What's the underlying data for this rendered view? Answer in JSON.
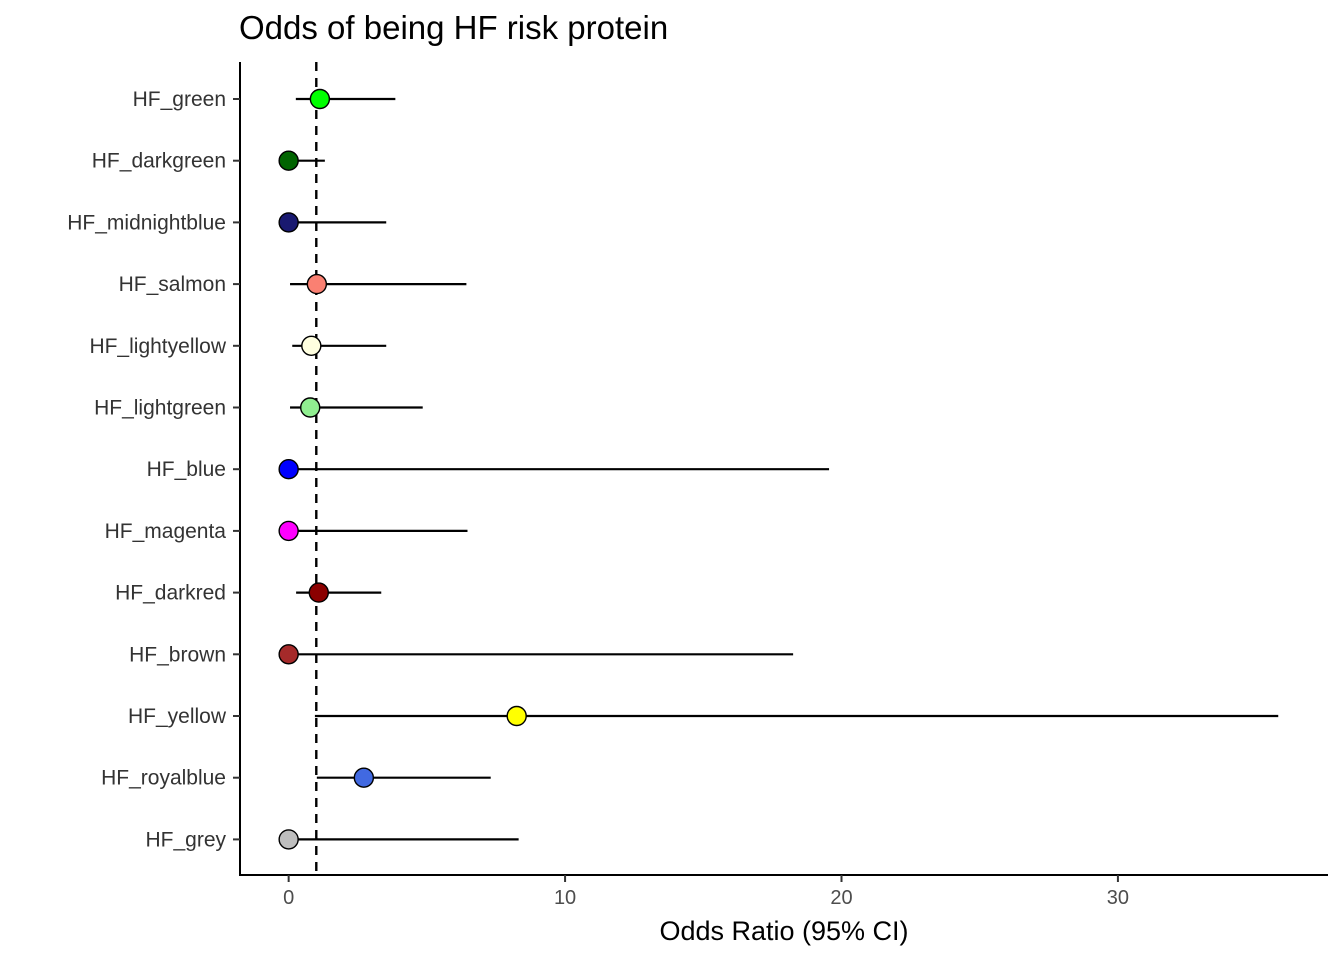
{
  "chart_data": {
    "type": "scatter",
    "subtype": "forest-plot",
    "title": "Odds of being HF risk protein",
    "xlabel": "Odds Ratio (95% CI)",
    "ylabel": "",
    "xlim": [
      -1.76,
      37.6
    ],
    "xticks": [
      0,
      10,
      20,
      30
    ],
    "reference_line": {
      "x": 1,
      "style": "dashed"
    },
    "grid": false,
    "legend": "none",
    "categories": [
      "HF_green",
      "HF_darkgreen",
      "HF_midnightblue",
      "HF_salmon",
      "HF_lightyellow",
      "HF_lightgreen",
      "HF_blue",
      "HF_magenta",
      "HF_darkred",
      "HF_brown",
      "HF_yellow",
      "HF_royalblue",
      "HF_grey"
    ],
    "points": [
      {
        "label": "HF_green",
        "or": 1.13,
        "lower": 0.26,
        "upper": 3.86,
        "color": "#00ff00"
      },
      {
        "label": "HF_darkgreen",
        "or": 0.0,
        "lower": 0.0,
        "upper": 1.31,
        "color": "#006400"
      },
      {
        "label": "HF_midnightblue",
        "or": 0.0,
        "lower": 0.0,
        "upper": 3.53,
        "color": "#191970"
      },
      {
        "label": "HF_salmon",
        "or": 1.02,
        "lower": 0.05,
        "upper": 6.43,
        "color": "#fa8072"
      },
      {
        "label": "HF_lightyellow",
        "or": 0.82,
        "lower": 0.13,
        "upper": 3.53,
        "color": "#ffffe0"
      },
      {
        "label": "HF_lightgreen",
        "or": 0.78,
        "lower": 0.05,
        "upper": 4.85,
        "color": "#90ee90"
      },
      {
        "label": "HF_blue",
        "or": 0.0,
        "lower": 0.0,
        "upper": 19.55,
        "color": "#0000ff"
      },
      {
        "label": "HF_magenta",
        "or": 0.0,
        "lower": 0.0,
        "upper": 6.47,
        "color": "#ff00ff"
      },
      {
        "label": "HF_darkred",
        "or": 1.09,
        "lower": 0.27,
        "upper": 3.35,
        "color": "#8b0000"
      },
      {
        "label": "HF_brown",
        "or": 0.0,
        "lower": 0.0,
        "upper": 18.25,
        "color": "#a52a2a"
      },
      {
        "label": "HF_yellow",
        "or": 8.25,
        "lower": 0.95,
        "upper": 35.8,
        "color": "#ffff00"
      },
      {
        "label": "HF_royalblue",
        "or": 2.72,
        "lower": 1.02,
        "upper": 7.31,
        "color": "#4169e1"
      },
      {
        "label": "HF_grey",
        "or": 0.0,
        "lower": 0.0,
        "upper": 8.32,
        "color": "#bebebe"
      }
    ]
  }
}
